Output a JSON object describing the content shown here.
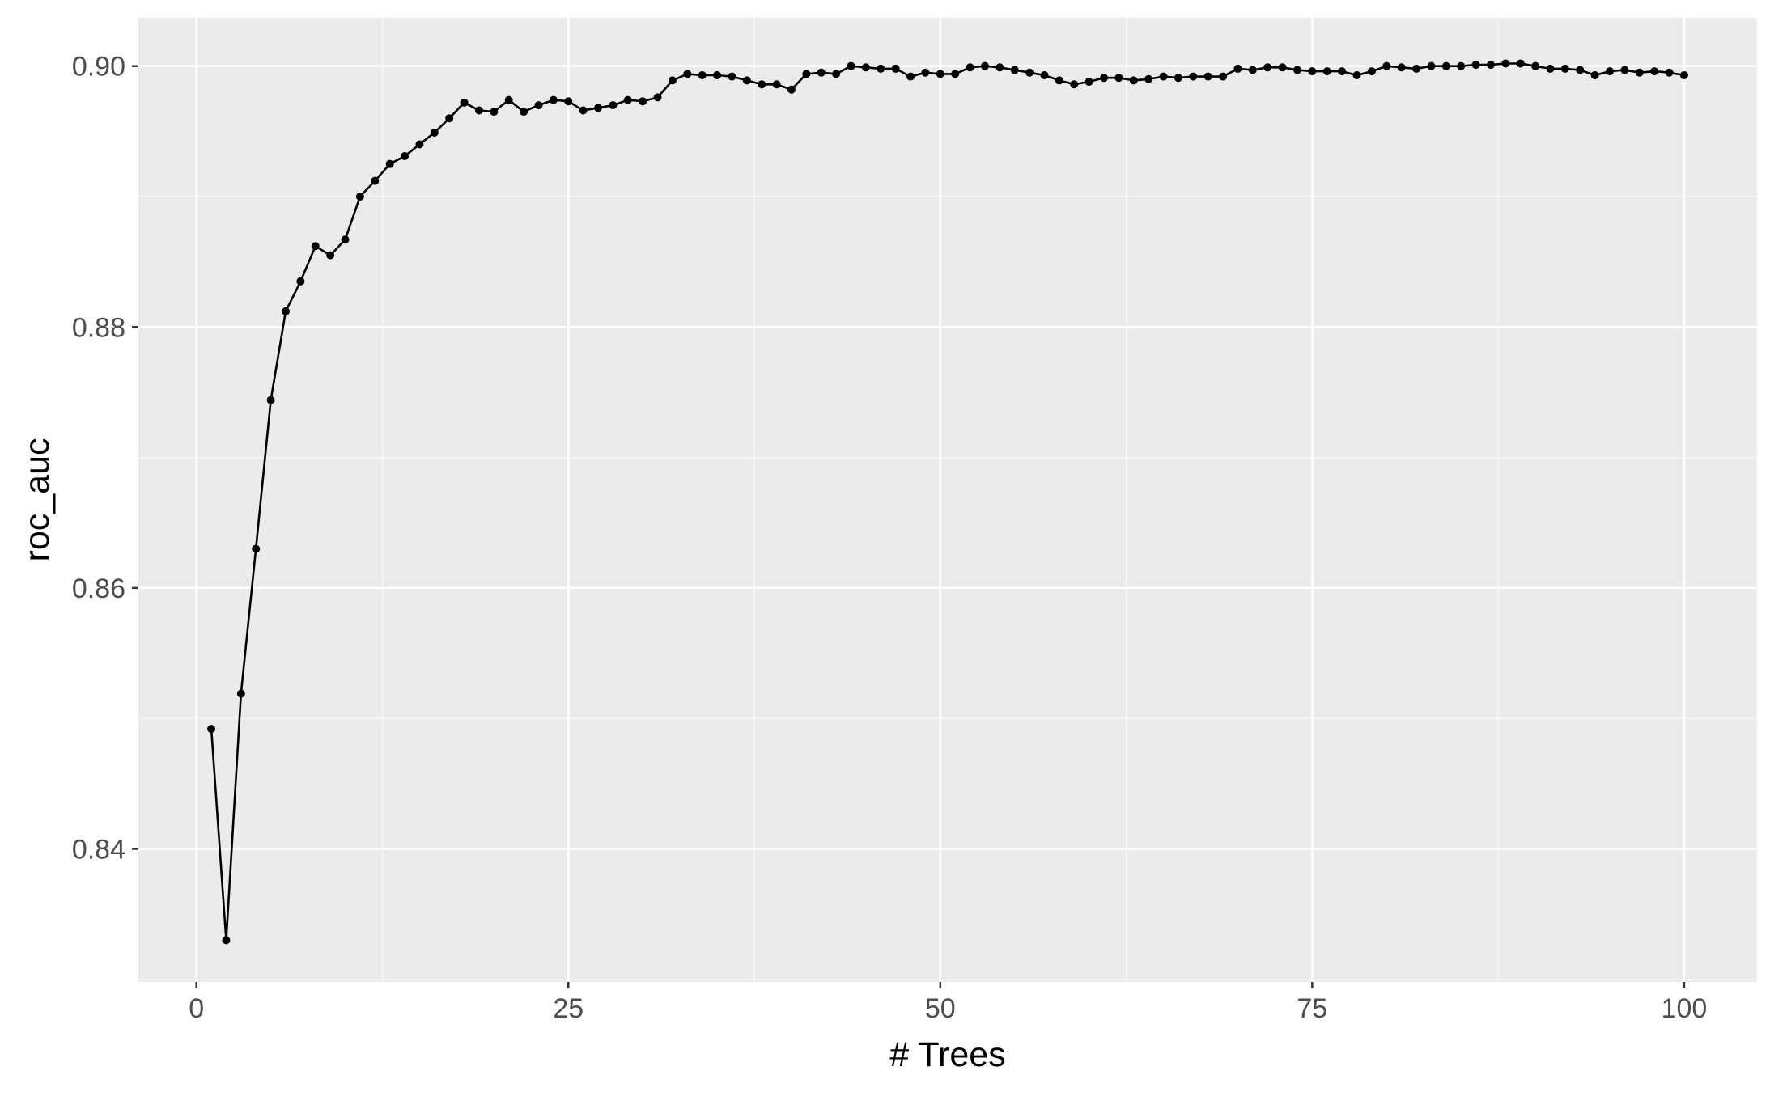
{
  "chart_data": {
    "type": "line",
    "title": "",
    "xlabel": "# Trees",
    "ylabel": "roc_auc",
    "xlim": [
      -3.9,
      104.9
    ],
    "ylim": [
      0.8298,
      0.9037
    ],
    "x_ticks": [
      0,
      25,
      50,
      75,
      100
    ],
    "x_tick_labels": [
      "0",
      "25",
      "50",
      "75",
      "100"
    ],
    "y_ticks": [
      0.84,
      0.86,
      0.88,
      0.9
    ],
    "y_tick_labels": [
      "0.84",
      "0.86",
      "0.88",
      "0.90"
    ],
    "grid": true,
    "legend": "none",
    "colors": {
      "panel_background": "#ebebeb",
      "grid_major": "#ffffff",
      "grid_minor": "#f7f7f7",
      "series": "#000000",
      "tick_text": "#4d4d4d"
    },
    "series": [
      {
        "x": [
          1,
          2,
          3,
          4,
          5,
          6,
          7,
          8,
          9,
          10,
          11,
          12,
          13,
          14,
          15,
          16,
          17,
          18,
          19,
          20,
          21,
          22,
          23,
          24,
          25,
          26,
          27,
          28,
          29,
          30,
          31,
          32,
          33,
          34,
          35,
          36,
          37,
          38,
          39,
          40,
          41,
          42,
          43,
          44,
          45,
          46,
          47,
          48,
          49,
          50,
          51,
          52,
          53,
          54,
          55,
          56,
          57,
          58,
          59,
          60,
          61,
          62,
          63,
          64,
          65,
          66,
          67,
          68,
          69,
          70,
          71,
          72,
          73,
          74,
          75,
          76,
          77,
          78,
          79,
          80,
          81,
          82,
          83,
          84,
          85,
          86,
          87,
          88,
          89,
          90,
          91,
          92,
          93,
          94,
          95,
          96,
          97,
          98,
          99,
          100
        ],
        "values": [
          0.8492,
          0.833,
          0.8519,
          0.863,
          0.8744,
          0.8812,
          0.8835,
          0.8862,
          0.8855,
          0.8867,
          0.89,
          0.8912,
          0.8925,
          0.8931,
          0.894,
          0.8949,
          0.896,
          0.8972,
          0.8966,
          0.8965,
          0.8974,
          0.8965,
          0.897,
          0.8974,
          0.8973,
          0.8966,
          0.8968,
          0.897,
          0.8974,
          0.8973,
          0.8976,
          0.8989,
          0.8994,
          0.8993,
          0.8993,
          0.8992,
          0.8989,
          0.8986,
          0.8986,
          0.8982,
          0.8994,
          0.8995,
          0.8994,
          0.9,
          0.8999,
          0.8998,
          0.8998,
          0.8992,
          0.8995,
          0.8994,
          0.8994,
          0.8999,
          0.9,
          0.8999,
          0.8997,
          0.8995,
          0.8993,
          0.8989,
          0.8986,
          0.8988,
          0.8991,
          0.8991,
          0.8989,
          0.899,
          0.8992,
          0.8991,
          0.8992,
          0.8992,
          0.8992,
          0.8998,
          0.8997,
          0.8999,
          0.8999,
          0.8997,
          0.8996,
          0.8996,
          0.8996,
          0.8993,
          0.8996,
          0.9,
          0.8999,
          0.8998,
          0.9,
          0.9,
          0.9,
          0.9001,
          0.9001,
          0.9002,
          0.9002,
          0.9,
          0.8998,
          0.8998,
          0.8997,
          0.8993,
          0.8996,
          0.8997,
          0.8995,
          0.8996,
          0.8995,
          0.8993
        ]
      }
    ]
  }
}
